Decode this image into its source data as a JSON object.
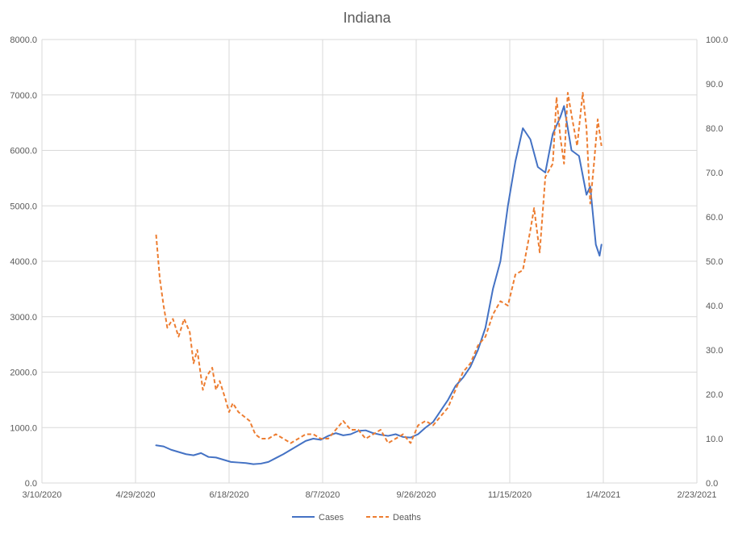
{
  "chart_data": {
    "type": "line",
    "title": "Indiana",
    "x_type": "date",
    "xlim": [
      "2020-03-10",
      "2021-02-23"
    ],
    "x_ticks": [
      "3/10/2020",
      "4/29/2020",
      "6/18/2020",
      "8/7/2020",
      "9/26/2020",
      "11/15/2020",
      "1/4/2021",
      "2/23/2021"
    ],
    "y_left": {
      "lim": [
        0,
        8000
      ],
      "ticks": [
        "0.0",
        "1000.0",
        "2000.0",
        "3000.0",
        "4000.0",
        "5000.0",
        "6000.0",
        "7000.0",
        "8000.0"
      ]
    },
    "y_right": {
      "lim": [
        0,
        100
      ],
      "ticks": [
        "0.0",
        "10.0",
        "20.0",
        "30.0",
        "40.0",
        "50.0",
        "60.0",
        "70.0",
        "80.0",
        "90.0",
        "100.0"
      ]
    },
    "grid": true,
    "legend_position": "bottom",
    "series": [
      {
        "name": "Cases",
        "axis": "left",
        "color": "#4472c4",
        "style": "solid",
        "points": [
          [
            "2020-05-10",
            680
          ],
          [
            "2020-05-14",
            660
          ],
          [
            "2020-05-18",
            600
          ],
          [
            "2020-05-22",
            560
          ],
          [
            "2020-05-26",
            520
          ],
          [
            "2020-05-30",
            500
          ],
          [
            "2020-06-03",
            540
          ],
          [
            "2020-06-07",
            470
          ],
          [
            "2020-06-11",
            460
          ],
          [
            "2020-06-15",
            420
          ],
          [
            "2020-06-19",
            380
          ],
          [
            "2020-06-23",
            370
          ],
          [
            "2020-06-27",
            360
          ],
          [
            "2020-07-01",
            340
          ],
          [
            "2020-07-05",
            350
          ],
          [
            "2020-07-09",
            380
          ],
          [
            "2020-07-13",
            450
          ],
          [
            "2020-07-17",
            520
          ],
          [
            "2020-07-21",
            600
          ],
          [
            "2020-07-25",
            680
          ],
          [
            "2020-07-29",
            760
          ],
          [
            "2020-08-02",
            800
          ],
          [
            "2020-08-06",
            780
          ],
          [
            "2020-08-10",
            850
          ],
          [
            "2020-08-14",
            900
          ],
          [
            "2020-08-18",
            860
          ],
          [
            "2020-08-22",
            880
          ],
          [
            "2020-08-26",
            940
          ],
          [
            "2020-08-30",
            950
          ],
          [
            "2020-09-03",
            900
          ],
          [
            "2020-09-07",
            870
          ],
          [
            "2020-09-11",
            850
          ],
          [
            "2020-09-15",
            880
          ],
          [
            "2020-09-19",
            830
          ],
          [
            "2020-09-23",
            820
          ],
          [
            "2020-09-27",
            880
          ],
          [
            "2020-10-01",
            1000
          ],
          [
            "2020-10-05",
            1100
          ],
          [
            "2020-10-09",
            1300
          ],
          [
            "2020-10-13",
            1500
          ],
          [
            "2020-10-17",
            1750
          ],
          [
            "2020-10-21",
            1900
          ],
          [
            "2020-10-25",
            2100
          ],
          [
            "2020-10-29",
            2400
          ],
          [
            "2020-11-02",
            2800
          ],
          [
            "2020-11-06",
            3500
          ],
          [
            "2020-11-10",
            4000
          ],
          [
            "2020-11-14",
            5000
          ],
          [
            "2020-11-18",
            5800
          ],
          [
            "2020-11-22",
            6400
          ],
          [
            "2020-11-26",
            6200
          ],
          [
            "2020-11-30",
            5700
          ],
          [
            "2020-12-04",
            5600
          ],
          [
            "2020-12-08",
            6300
          ],
          [
            "2020-12-12",
            6600
          ],
          [
            "2020-12-14",
            6800
          ],
          [
            "2020-12-18",
            6000
          ],
          [
            "2020-12-22",
            5900
          ],
          [
            "2020-12-26",
            5200
          ],
          [
            "2020-12-28",
            5350
          ],
          [
            "2020-12-31",
            4300
          ],
          [
            "2021-01-02",
            4100
          ],
          [
            "2021-01-03",
            4300
          ]
        ]
      },
      {
        "name": "Deaths",
        "axis": "right",
        "color": "#ed7d31",
        "style": "dashed",
        "points": [
          [
            "2020-05-10",
            56
          ],
          [
            "2020-05-12",
            46
          ],
          [
            "2020-05-14",
            40
          ],
          [
            "2020-05-16",
            35
          ],
          [
            "2020-05-19",
            37
          ],
          [
            "2020-05-22",
            33
          ],
          [
            "2020-05-25",
            37
          ],
          [
            "2020-05-28",
            34
          ],
          [
            "2020-05-30",
            27
          ],
          [
            "2020-06-01",
            30
          ],
          [
            "2020-06-04",
            21
          ],
          [
            "2020-06-06",
            24
          ],
          [
            "2020-06-09",
            26
          ],
          [
            "2020-06-11",
            21
          ],
          [
            "2020-06-13",
            23
          ],
          [
            "2020-06-16",
            19
          ],
          [
            "2020-06-18",
            16
          ],
          [
            "2020-06-20",
            18
          ],
          [
            "2020-06-23",
            16
          ],
          [
            "2020-06-26",
            15
          ],
          [
            "2020-06-29",
            14
          ],
          [
            "2020-07-02",
            11
          ],
          [
            "2020-07-05",
            10
          ],
          [
            "2020-07-09",
            10
          ],
          [
            "2020-07-13",
            11
          ],
          [
            "2020-07-17",
            10
          ],
          [
            "2020-07-21",
            9
          ],
          [
            "2020-07-25",
            10
          ],
          [
            "2020-07-29",
            11
          ],
          [
            "2020-08-02",
            11
          ],
          [
            "2020-08-06",
            10
          ],
          [
            "2020-08-10",
            10
          ],
          [
            "2020-08-14",
            12
          ],
          [
            "2020-08-18",
            14
          ],
          [
            "2020-08-22",
            12
          ],
          [
            "2020-08-26",
            12
          ],
          [
            "2020-08-30",
            10
          ],
          [
            "2020-09-03",
            11
          ],
          [
            "2020-09-07",
            12
          ],
          [
            "2020-09-11",
            9
          ],
          [
            "2020-09-15",
            10
          ],
          [
            "2020-09-19",
            11
          ],
          [
            "2020-09-23",
            9
          ],
          [
            "2020-09-27",
            13
          ],
          [
            "2020-10-01",
            14
          ],
          [
            "2020-10-05",
            13
          ],
          [
            "2020-10-09",
            15
          ],
          [
            "2020-10-13",
            17
          ],
          [
            "2020-10-17",
            21
          ],
          [
            "2020-10-21",
            25
          ],
          [
            "2020-10-25",
            27
          ],
          [
            "2020-10-29",
            31
          ],
          [
            "2020-11-02",
            33
          ],
          [
            "2020-11-06",
            38
          ],
          [
            "2020-11-10",
            41
          ],
          [
            "2020-11-14",
            40
          ],
          [
            "2020-11-18",
            47
          ],
          [
            "2020-11-22",
            48
          ],
          [
            "2020-11-26",
            57
          ],
          [
            "2020-11-28",
            62
          ],
          [
            "2020-12-01",
            52
          ],
          [
            "2020-12-04",
            69
          ],
          [
            "2020-12-08",
            72
          ],
          [
            "2020-12-10",
            87
          ],
          [
            "2020-12-12",
            78
          ],
          [
            "2020-12-14",
            72
          ],
          [
            "2020-12-16",
            88
          ],
          [
            "2020-12-18",
            83
          ],
          [
            "2020-12-21",
            76
          ],
          [
            "2020-12-24",
            88
          ],
          [
            "2020-12-26",
            80
          ],
          [
            "2020-12-28",
            63
          ],
          [
            "2020-12-30",
            72
          ],
          [
            "2021-01-01",
            82
          ],
          [
            "2021-01-03",
            76
          ]
        ]
      }
    ]
  }
}
